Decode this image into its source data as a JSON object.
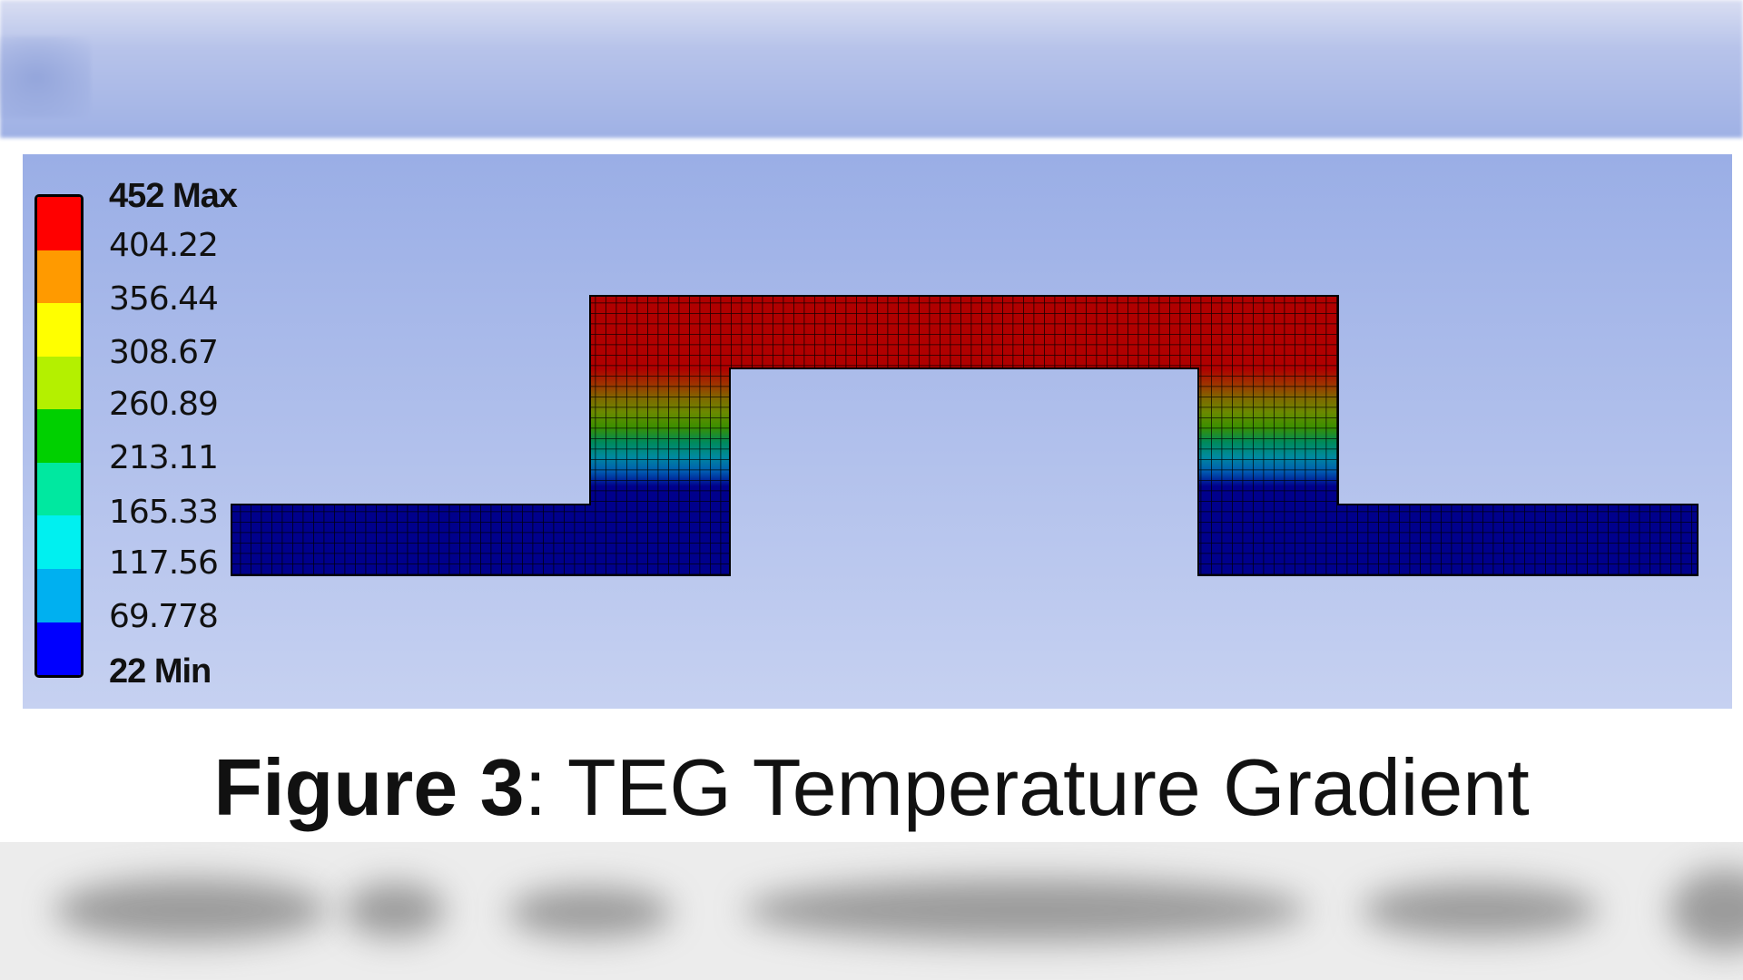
{
  "legend": {
    "max_label": "452 Max",
    "min_label": "22 Min",
    "ticks": [
      "404.22",
      "356.44",
      "308.67",
      "260.89",
      "213.11",
      "165.33",
      "117.56",
      "69.778"
    ],
    "colors": [
      "#ff0000",
      "#ff9a00",
      "#ffff00",
      "#b4f000",
      "#00d000",
      "#00e8a0",
      "#00f0f0",
      "#00b0f0",
      "#0000ff"
    ]
  },
  "mesh": {
    "hot_color": "#b00000",
    "cold_color": "#00008c",
    "gradient_colors": [
      "#b00000",
      "#a03000",
      "#806800",
      "#6a8a00",
      "#3a9000",
      "#008a5a",
      "#008aa0",
      "#005ab0",
      "#00008c"
    ]
  },
  "caption": {
    "figure": "Figure 3",
    "text": ": TEG Temperature Gradient"
  }
}
